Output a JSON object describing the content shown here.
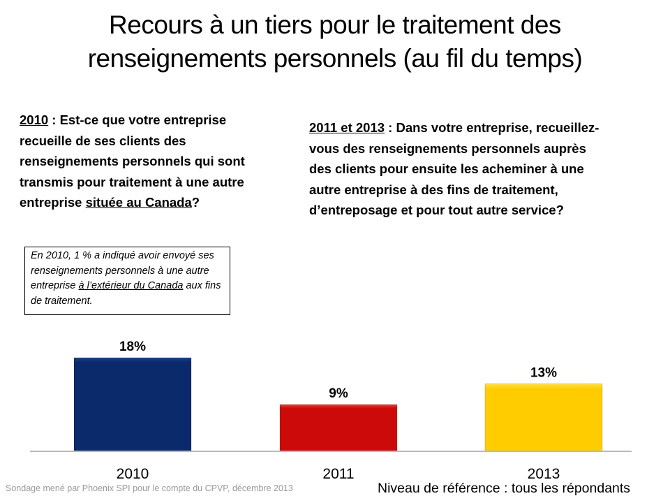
{
  "title_line1": "Recours à un tiers pour le traitement des",
  "title_line2": "renseignements personnels (au fil du temps)",
  "question_2010": {
    "year": "2010",
    "text1": " : Est-ce que votre entreprise recueille de ses clients des renseignements personnels qui sont transmis pour traitement à une autre entreprise ",
    "underlined": "située au Canada",
    "text2": "?"
  },
  "question_2011_2013": {
    "years": "2011 et 2013",
    "text": " : Dans votre entreprise, recueillez-vous des renseignements personnels auprès des clients pour ensuite les acheminer à une autre entreprise à des fins de traitement, d’entreposage et pour tout autre service?"
  },
  "note": {
    "text1": "En 2010, 1 % a indiqué avoir envoyé ses renseignements personnels à une autre entreprise ",
    "underlined1": "à l’extérieur du Canada",
    "text2": " aux fins de traitement."
  },
  "chart_data": {
    "type": "bar",
    "categories": [
      "2010",
      "2011",
      "2013"
    ],
    "values": [
      18,
      9,
      13
    ],
    "labels": [
      "18%",
      "9%",
      "13%"
    ],
    "colors": [
      "#0a2a6b",
      "#cc0a0a",
      "#ffcc00"
    ],
    "ylim": [
      0,
      20
    ],
    "grid": false
  },
  "source": "Sondage mené par Phoenix SPI pour le compte du CPVP, décembre 2013",
  "base": "Niveau de référence : tous les répondants"
}
